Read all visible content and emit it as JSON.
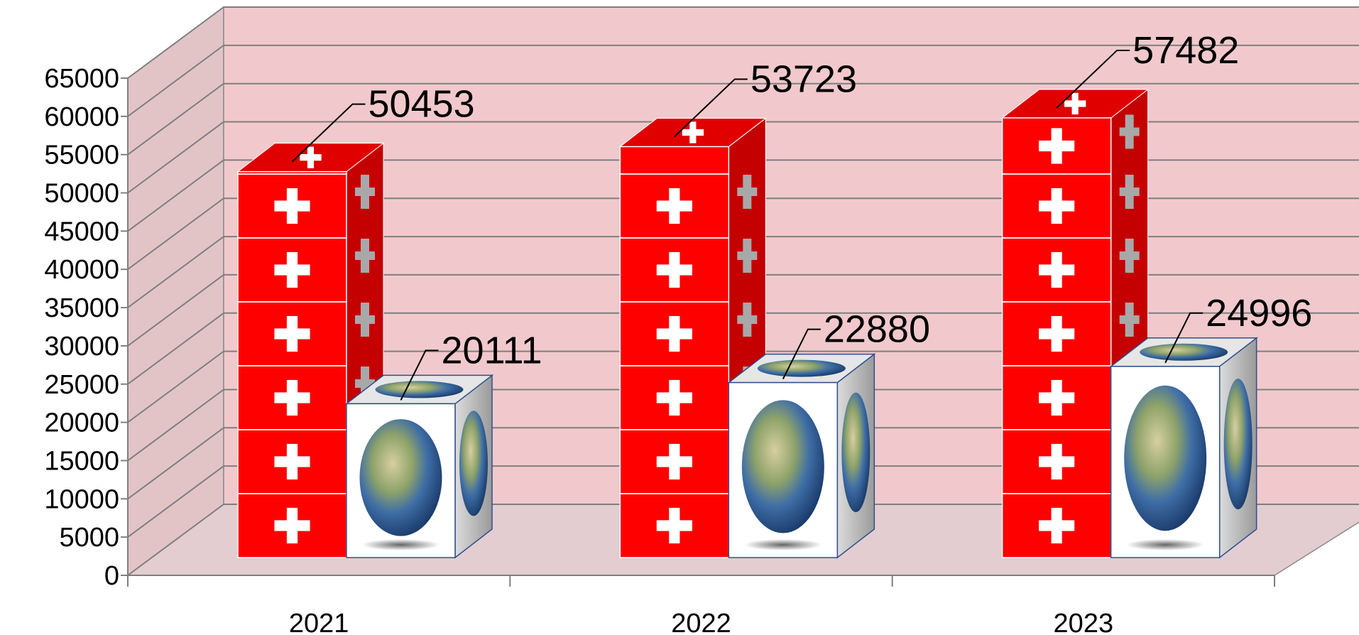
{
  "chart_data": {
    "type": "bar",
    "title": "",
    "xlabel": "",
    "ylabel": "",
    "categories": [
      "2021",
      "2022",
      "2023"
    ],
    "series": [
      {
        "values": [
          50453,
          53723,
          57482
        ],
        "icon": "swiss-flag-icon",
        "color": "#ff0000"
      },
      {
        "values": [
          20111,
          22880,
          24996
        ],
        "icon": "globe-icon",
        "color": "#ffffff"
      }
    ],
    "ylim": [
      0,
      65000
    ],
    "yticks": [
      0,
      5000,
      10000,
      15000,
      20000,
      25000,
      30000,
      35000,
      40000,
      45000,
      50000,
      55000,
      60000,
      65000
    ],
    "grid": true,
    "wall_color": "#f1c9cc",
    "floor_color": "#e3cdd0"
  }
}
